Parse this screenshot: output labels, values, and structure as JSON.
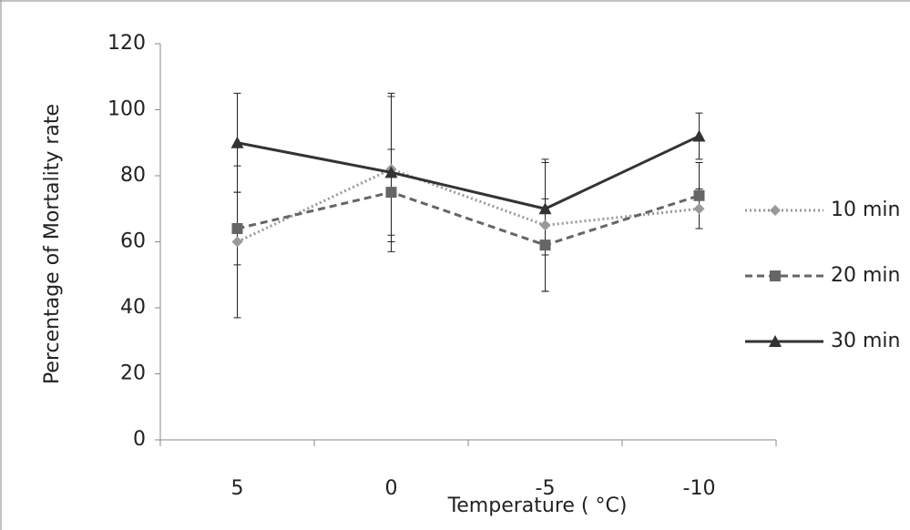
{
  "chart_data": {
    "type": "line",
    "x_label": "Temperature ( °C)",
    "y_label": "Percentage of Mortality rate",
    "categories": [
      "5",
      "0",
      "-5",
      "-10"
    ],
    "series": [
      {
        "name": "10 min",
        "color": "#999999",
        "dash": "2,3",
        "marker": "diamond",
        "values": [
          60,
          82,
          65,
          70
        ],
        "errors": [
          23,
          22,
          20,
          6
        ]
      },
      {
        "name": "20 min",
        "color": "#666666",
        "dash": "8,5",
        "marker": "square",
        "values": [
          64,
          75,
          59,
          74
        ],
        "errors": [
          11,
          13,
          14,
          10
        ]
      },
      {
        "name": "30 min",
        "color": "#333333",
        "dash": "",
        "marker": "triangle",
        "values": [
          90,
          81,
          70,
          92
        ],
        "errors": [
          15,
          24,
          14,
          7
        ]
      }
    ],
    "ylim": [
      0,
      120
    ],
    "yticks": [
      0,
      20,
      40,
      60,
      80,
      100,
      120
    ],
    "grid": false,
    "legend": "right"
  }
}
